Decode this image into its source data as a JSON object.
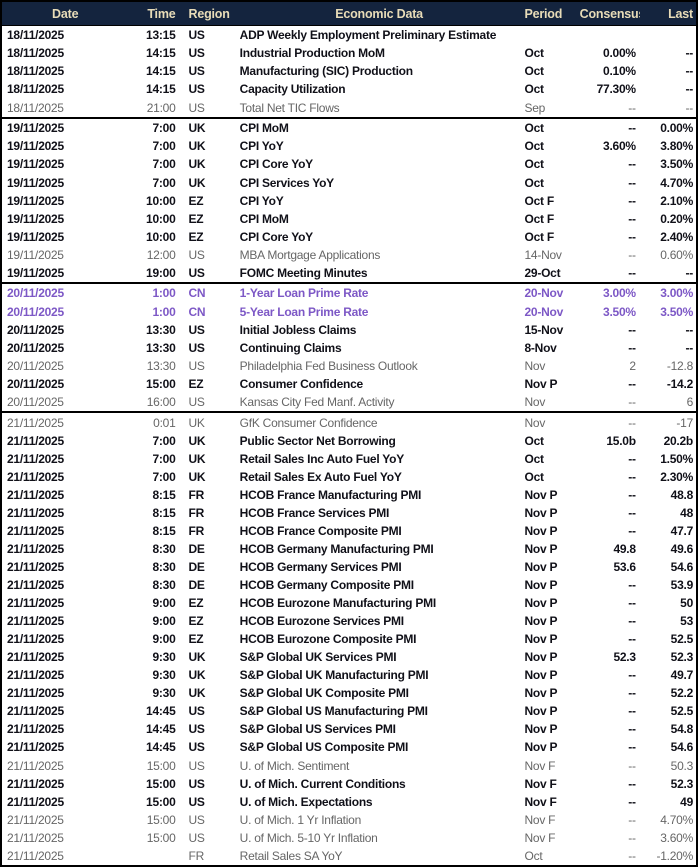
{
  "colors": {
    "header_bg": "#14243e",
    "header_text": "#e8dcb8",
    "strong_text": "#101018",
    "muted_text": "#666666",
    "cn_text": "#7d58c6",
    "border": "#000000"
  },
  "table": {
    "columns": [
      {
        "key": "date",
        "label": "Date"
      },
      {
        "key": "time",
        "label": "Time"
      },
      {
        "key": "region",
        "label": "Region"
      },
      {
        "key": "event",
        "label": "Economic Data"
      },
      {
        "key": "period",
        "label": "Period"
      },
      {
        "key": "consensus",
        "label": "Consensus"
      },
      {
        "key": "last",
        "label": "Last"
      }
    ],
    "groups": [
      {
        "rows": [
          {
            "date": "18/11/2025",
            "time": "13:15",
            "region": "US",
            "event": "ADP Weekly Employment Preliminary Estimate",
            "period": "",
            "consensus": "",
            "last": "",
            "style": "strong"
          },
          {
            "date": "18/11/2025",
            "time": "14:15",
            "region": "US",
            "event": "Industrial Production MoM",
            "period": "Oct",
            "consensus": "0.00%",
            "last": "--",
            "style": "strong"
          },
          {
            "date": "18/11/2025",
            "time": "14:15",
            "region": "US",
            "event": "Manufacturing (SIC) Production",
            "period": "Oct",
            "consensus": "0.10%",
            "last": "--",
            "style": "strong"
          },
          {
            "date": "18/11/2025",
            "time": "14:15",
            "region": "US",
            "event": "Capacity Utilization",
            "period": "Oct",
            "consensus": "77.30%",
            "last": "--",
            "style": "strong"
          },
          {
            "date": "18/11/2025",
            "time": "21:00",
            "region": "US",
            "event": "Total Net TIC Flows",
            "period": "Sep",
            "consensus": "--",
            "last": "--",
            "style": "muted"
          }
        ]
      },
      {
        "rows": [
          {
            "date": "19/11/2025",
            "time": "7:00",
            "region": "UK",
            "event": "CPI MoM",
            "period": "Oct",
            "consensus": "--",
            "last": "0.00%",
            "style": "strong"
          },
          {
            "date": "19/11/2025",
            "time": "7:00",
            "region": "UK",
            "event": "CPI YoY",
            "period": "Oct",
            "consensus": "3.60%",
            "last": "3.80%",
            "style": "strong"
          },
          {
            "date": "19/11/2025",
            "time": "7:00",
            "region": "UK",
            "event": "CPI Core YoY",
            "period": "Oct",
            "consensus": "--",
            "last": "3.50%",
            "style": "strong"
          },
          {
            "date": "19/11/2025",
            "time": "7:00",
            "region": "UK",
            "event": "CPI Services YoY",
            "period": "Oct",
            "consensus": "--",
            "last": "4.70%",
            "style": "strong"
          },
          {
            "date": "19/11/2025",
            "time": "10:00",
            "region": "EZ",
            "event": "CPI YoY",
            "period": "Oct F",
            "consensus": "--",
            "last": "2.10%",
            "style": "strong"
          },
          {
            "date": "19/11/2025",
            "time": "10:00",
            "region": "EZ",
            "event": "CPI MoM",
            "period": "Oct F",
            "consensus": "--",
            "last": "0.20%",
            "style": "strong"
          },
          {
            "date": "19/11/2025",
            "time": "10:00",
            "region": "EZ",
            "event": "CPI Core YoY",
            "period": "Oct F",
            "consensus": "--",
            "last": "2.40%",
            "style": "strong"
          },
          {
            "date": "19/11/2025",
            "time": "12:00",
            "region": "US",
            "event": "MBA Mortgage Applications",
            "period": "14-Nov",
            "consensus": "--",
            "last": "0.60%",
            "style": "muted"
          },
          {
            "date": "19/11/2025",
            "time": "19:00",
            "region": "US",
            "event": "FOMC Meeting Minutes",
            "period": "29-Oct",
            "consensus": "--",
            "last": "--",
            "style": "strong"
          }
        ]
      },
      {
        "rows": [
          {
            "date": "20/11/2025",
            "time": "1:00",
            "region": "CN",
            "event": "1-Year Loan Prime Rate",
            "period": "20-Nov",
            "consensus": "3.00%",
            "last": "3.00%",
            "style": "cn"
          },
          {
            "date": "20/11/2025",
            "time": "1:00",
            "region": "CN",
            "event": "5-Year Loan Prime Rate",
            "period": "20-Nov",
            "consensus": "3.50%",
            "last": "3.50%",
            "style": "cn"
          },
          {
            "date": "20/11/2025",
            "time": "13:30",
            "region": "US",
            "event": "Initial Jobless Claims",
            "period": "15-Nov",
            "consensus": "--",
            "last": "--",
            "style": "strong"
          },
          {
            "date": "20/11/2025",
            "time": "13:30",
            "region": "US",
            "event": "Continuing Claims",
            "period": "8-Nov",
            "consensus": "--",
            "last": "--",
            "style": "strong"
          },
          {
            "date": "20/11/2025",
            "time": "13:30",
            "region": "US",
            "event": "Philadelphia Fed Business Outlook",
            "period": "Nov",
            "consensus": "2",
            "last": "-12.8",
            "style": "muted"
          },
          {
            "date": "20/11/2025",
            "time": "15:00",
            "region": "EZ",
            "event": "Consumer Confidence",
            "period": "Nov P",
            "consensus": "--",
            "last": "-14.2",
            "style": "strong"
          },
          {
            "date": "20/11/2025",
            "time": "16:00",
            "region": "US",
            "event": "Kansas City Fed Manf. Activity",
            "period": "Nov",
            "consensus": "--",
            "last": "6",
            "style": "muted"
          }
        ]
      },
      {
        "rows": [
          {
            "date": "21/11/2025",
            "time": "0:01",
            "region": "UK",
            "event": "GfK Consumer Confidence",
            "period": "Nov",
            "consensus": "--",
            "last": "-17",
            "style": "muted"
          },
          {
            "date": "21/11/2025",
            "time": "7:00",
            "region": "UK",
            "event": "Public Sector Net Borrowing",
            "period": "Oct",
            "consensus": "15.0b",
            "last": "20.2b",
            "style": "strong"
          },
          {
            "date": "21/11/2025",
            "time": "7:00",
            "region": "UK",
            "event": "Retail Sales Inc Auto Fuel YoY",
            "period": "Oct",
            "consensus": "--",
            "last": "1.50%",
            "style": "strong"
          },
          {
            "date": "21/11/2025",
            "time": "7:00",
            "region": "UK",
            "event": "Retail Sales Ex Auto Fuel YoY",
            "period": "Oct",
            "consensus": "--",
            "last": "2.30%",
            "style": "strong"
          },
          {
            "date": "21/11/2025",
            "time": "8:15",
            "region": "FR",
            "event": "HCOB France Manufacturing PMI",
            "period": "Nov P",
            "consensus": "--",
            "last": "48.8",
            "style": "strong"
          },
          {
            "date": "21/11/2025",
            "time": "8:15",
            "region": "FR",
            "event": "HCOB France Services PMI",
            "period": "Nov P",
            "consensus": "--",
            "last": "48",
            "style": "strong"
          },
          {
            "date": "21/11/2025",
            "time": "8:15",
            "region": "FR",
            "event": "HCOB France Composite PMI",
            "period": "Nov P",
            "consensus": "--",
            "last": "47.7",
            "style": "strong"
          },
          {
            "date": "21/11/2025",
            "time": "8:30",
            "region": "DE",
            "event": "HCOB Germany Manufacturing PMI",
            "period": "Nov P",
            "consensus": "49.8",
            "last": "49.6",
            "style": "strong"
          },
          {
            "date": "21/11/2025",
            "time": "8:30",
            "region": "DE",
            "event": "HCOB Germany Services PMI",
            "period": "Nov P",
            "consensus": "53.6",
            "last": "54.6",
            "style": "strong"
          },
          {
            "date": "21/11/2025",
            "time": "8:30",
            "region": "DE",
            "event": "HCOB Germany Composite PMI",
            "period": "Nov P",
            "consensus": "--",
            "last": "53.9",
            "style": "strong"
          },
          {
            "date": "21/11/2025",
            "time": "9:00",
            "region": "EZ",
            "event": "HCOB Eurozone Manufacturing PMI",
            "period": "Nov P",
            "consensus": "--",
            "last": "50",
            "style": "strong"
          },
          {
            "date": "21/11/2025",
            "time": "9:00",
            "region": "EZ",
            "event": "HCOB Eurozone Services PMI",
            "period": "Nov P",
            "consensus": "--",
            "last": "53",
            "style": "strong"
          },
          {
            "date": "21/11/2025",
            "time": "9:00",
            "region": "EZ",
            "event": "HCOB Eurozone Composite PMI",
            "period": "Nov P",
            "consensus": "--",
            "last": "52.5",
            "style": "strong"
          },
          {
            "date": "21/11/2025",
            "time": "9:30",
            "region": "UK",
            "event": "S&P Global UK Services PMI",
            "period": "Nov P",
            "consensus": "52.3",
            "last": "52.3",
            "style": "strong"
          },
          {
            "date": "21/11/2025",
            "time": "9:30",
            "region": "UK",
            "event": "S&P Global UK Manufacturing PMI",
            "period": "Nov P",
            "consensus": "--",
            "last": "49.7",
            "style": "strong"
          },
          {
            "date": "21/11/2025",
            "time": "9:30",
            "region": "UK",
            "event": "S&P Global UK Composite PMI",
            "period": "Nov P",
            "consensus": "--",
            "last": "52.2",
            "style": "strong"
          },
          {
            "date": "21/11/2025",
            "time": "14:45",
            "region": "US",
            "event": "S&P Global US Manufacturing PMI",
            "period": "Nov P",
            "consensus": "--",
            "last": "52.5",
            "style": "strong"
          },
          {
            "date": "21/11/2025",
            "time": "14:45",
            "region": "US",
            "event": "S&P Global US Services PMI",
            "period": "Nov P",
            "consensus": "--",
            "last": "54.8",
            "style": "strong"
          },
          {
            "date": "21/11/2025",
            "time": "14:45",
            "region": "US",
            "event": "S&P Global US Composite PMI",
            "period": "Nov P",
            "consensus": "--",
            "last": "54.6",
            "style": "strong"
          },
          {
            "date": "21/11/2025",
            "time": "15:00",
            "region": "US",
            "event": "U. of Mich. Sentiment",
            "period": "Nov F",
            "consensus": "--",
            "last": "50.3",
            "style": "muted"
          },
          {
            "date": "21/11/2025",
            "time": "15:00",
            "region": "US",
            "event": "U. of Mich. Current Conditions",
            "period": "Nov F",
            "consensus": "--",
            "last": "52.3",
            "style": "strong"
          },
          {
            "date": "21/11/2025",
            "time": "15:00",
            "region": "US",
            "event": "U. of Mich. Expectations",
            "period": "Nov F",
            "consensus": "--",
            "last": "49",
            "style": "strong"
          },
          {
            "date": "21/11/2025",
            "time": "15:00",
            "region": "US",
            "event": "U. of Mich. 1 Yr Inflation",
            "period": "Nov F",
            "consensus": "--",
            "last": "4.70%",
            "style": "muted"
          },
          {
            "date": "21/11/2025",
            "time": "15:00",
            "region": "US",
            "event": "U. of Mich. 5-10 Yr Inflation",
            "period": "Nov F",
            "consensus": "--",
            "last": "3.60%",
            "style": "muted"
          },
          {
            "date": "21/11/2025",
            "time": "",
            "region": "FR",
            "event": "Retail Sales SA YoY",
            "period": "Oct",
            "consensus": "--",
            "last": "-1.20%",
            "style": "muted"
          }
        ]
      }
    ]
  }
}
